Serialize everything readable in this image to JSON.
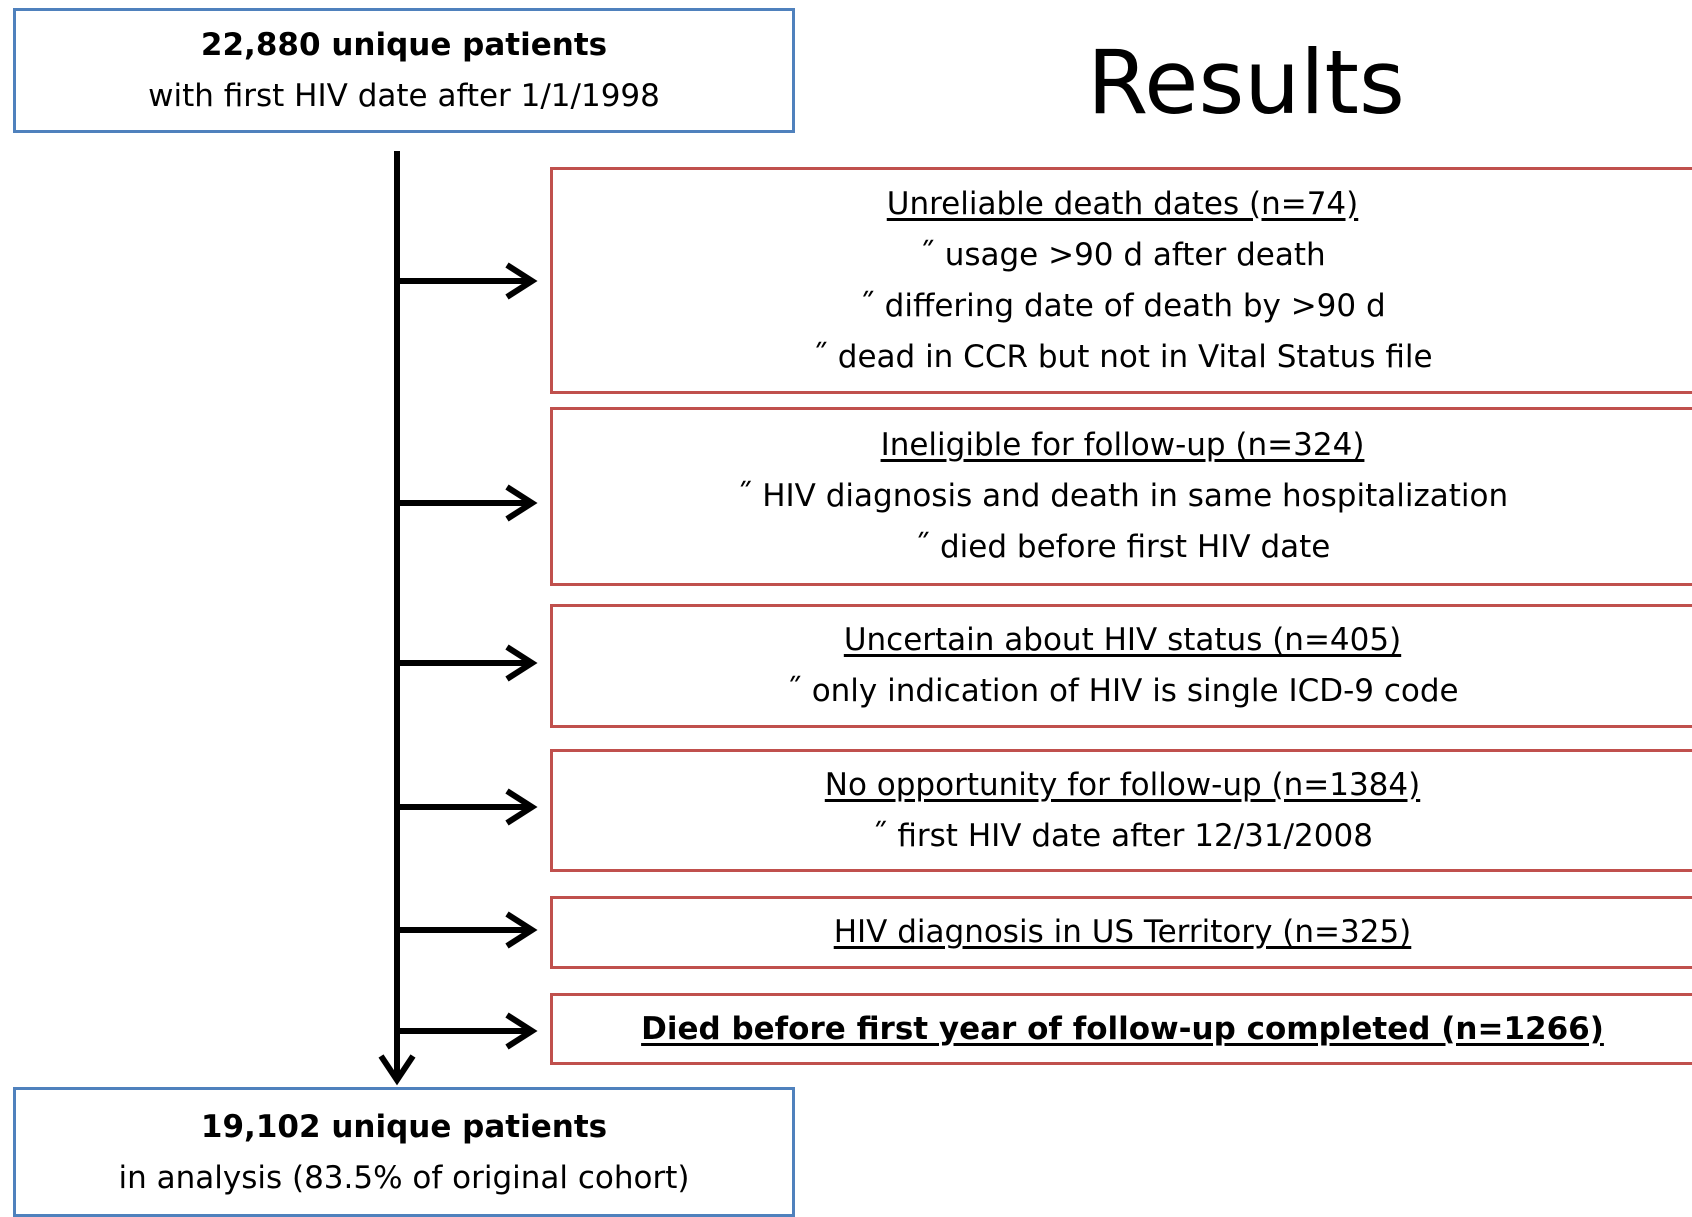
{
  "title": "Results",
  "start": {
    "count": "22,880 unique patients",
    "detail": "with first HIV date after 1/1/1998"
  },
  "exclusions": [
    {
      "heading": "Unreliable death dates (n=74)",
      "items": [
        "˝ usage >90 d after death",
        "˝ differing date of death by >90 d",
        "˝ dead in CCR but not in Vital Status file"
      ]
    },
    {
      "heading": "Ineligible for follow-up (n=324)",
      "items": [
        "˝ HIV diagnosis and death in same hospitalization",
        "˝ died before first HIV date"
      ]
    },
    {
      "heading": "Uncertain about HIV status (n=405)",
      "items": [
        "˝ only indication of HIV is single ICD-9 code"
      ]
    },
    {
      "heading": "No opportunity for follow-up (n=1384)",
      "items": [
        "˝ first HIV date after 12/31/2008"
      ]
    },
    {
      "heading": "HIV diagnosis in US Territory (n=325)",
      "items": []
    },
    {
      "heading": "Died before first year of follow-up completed (n=1266)",
      "items": []
    }
  ],
  "end": {
    "count": "19,102 unique patients",
    "detail": "in analysis (83.5% of original cohort)"
  }
}
